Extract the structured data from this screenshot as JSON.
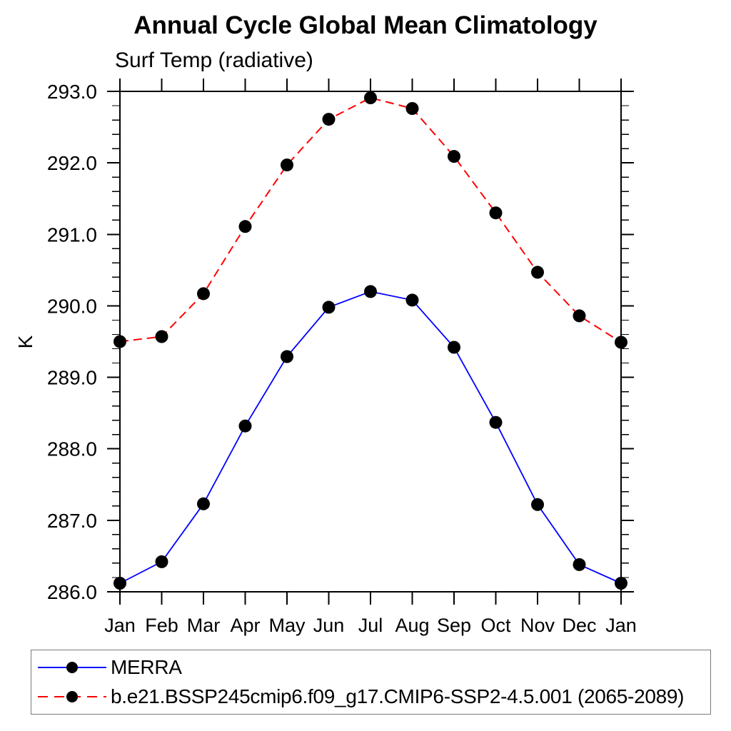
{
  "header": {
    "title": "Annual Cycle Global Mean Climatology",
    "subtitle": "Surf Temp (radiative)"
  },
  "chart_data": {
    "type": "line",
    "title": "Annual Cycle Global Mean Climatology",
    "subtitle": "Surf Temp (radiative)",
    "xlabel": "",
    "ylabel": "K",
    "categories": [
      "Jan",
      "Feb",
      "Mar",
      "Apr",
      "May",
      "Jun",
      "Jul",
      "Aug",
      "Sep",
      "Oct",
      "Nov",
      "Dec",
      "Jan"
    ],
    "ylim": [
      286.0,
      293.0
    ],
    "y_major_step": 1.0,
    "y_minor_step": 0.2,
    "y_tick_labels": [
      "293.0",
      "292.0",
      "291.0",
      "290.0",
      "289.0",
      "288.0",
      "287.0",
      "286.0"
    ],
    "grid": false,
    "legend_position": "bottom",
    "axis_color": "#000000",
    "series": [
      {
        "name": "MERRA",
        "color": "#0000ff",
        "line_style": "solid",
        "marker": "filled-circle",
        "marker_color": "#000000",
        "values": [
          286.12,
          286.42,
          287.23,
          288.32,
          289.29,
          289.98,
          290.2,
          290.08,
          289.42,
          288.37,
          287.22,
          286.38,
          286.12
        ]
      },
      {
        "name": "b.e21.BSSP245cmip6.f09_g17.CMIP6-SSP2-4.5.001 (2065-2089)",
        "color": "#ff0000",
        "line_style": "dashed",
        "marker": "filled-circle",
        "marker_color": "#000000",
        "values": [
          289.5,
          289.57,
          290.17,
          291.11,
          291.97,
          292.61,
          292.91,
          292.76,
          292.09,
          291.3,
          290.47,
          289.86,
          289.49
        ]
      }
    ]
  }
}
